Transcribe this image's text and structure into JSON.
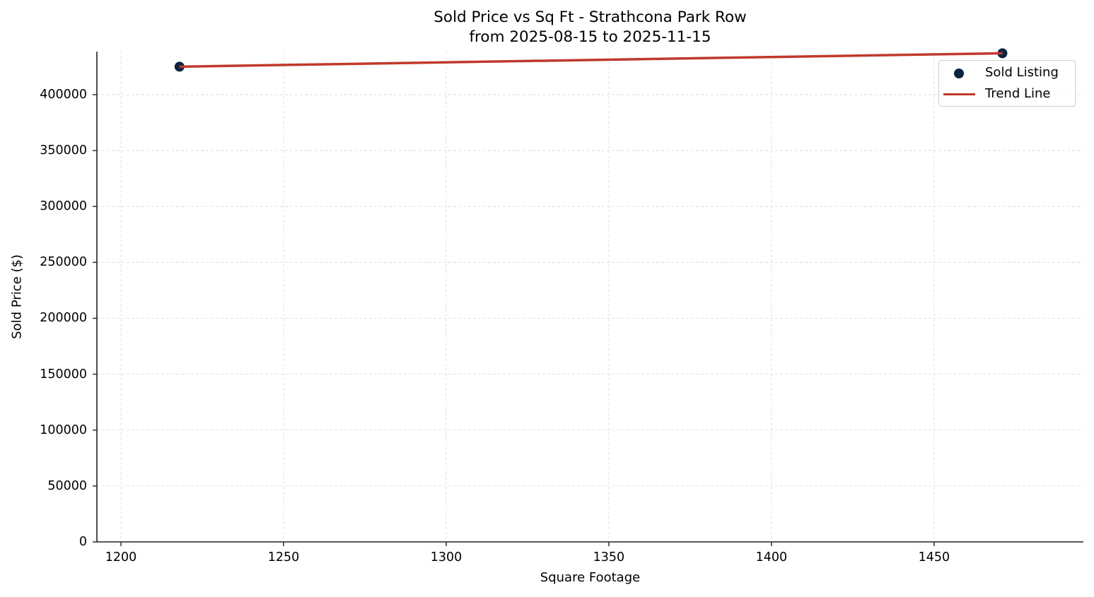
{
  "chart_data": {
    "type": "scatter",
    "title": "Sold Price vs Sq Ft - Strathcona Park Row",
    "subtitle": "from 2025-08-15 to 2025-11-15",
    "xlabel": "Square Footage",
    "ylabel": "Sold Price ($)",
    "xlim": [
      1192.6,
      1495.9
    ],
    "ylim": [
      0,
      438500
    ],
    "grid": true,
    "legend_position": "upper right",
    "x_ticks": [
      1200,
      1250,
      1300,
      1350,
      1400,
      1450
    ],
    "y_ticks": [
      0,
      50000,
      100000,
      150000,
      200000,
      250000,
      300000,
      350000,
      400000
    ],
    "series": [
      {
        "name": "Sold Listing",
        "type": "scatter",
        "color": "#0d2340",
        "points": [
          {
            "x": 1218,
            "y": 425000
          },
          {
            "x": 1471,
            "y": 437000
          }
        ]
      },
      {
        "name": "Trend Line",
        "type": "line",
        "color": "#c0392b",
        "points": [
          {
            "x": 1218,
            "y": 425000
          },
          {
            "x": 1471,
            "y": 437000
          }
        ]
      }
    ]
  },
  "labels": {
    "title": "Sold Price vs Sq Ft - Strathcona Park Row",
    "subtitle": "from 2025-08-15 to 2025-11-15",
    "xlabel": "Square Footage",
    "ylabel": "Sold Price ($)",
    "legend": [
      "Sold Listing",
      "Trend Line"
    ],
    "x_ticks": [
      "1200",
      "1250",
      "1300",
      "1350",
      "1400",
      "1450"
    ],
    "y_ticks": [
      "0",
      "50000",
      "100000",
      "150000",
      "200000",
      "250000",
      "300000",
      "350000",
      "400000"
    ]
  }
}
